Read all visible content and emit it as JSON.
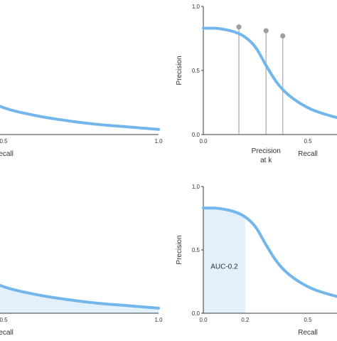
{
  "colors": {
    "curve": "#72b6ec",
    "fill": "#e1f0fb",
    "axis": "#3a3a3a",
    "marker_line": "#bdbdbd",
    "marker_dot": "#9e9e9e"
  },
  "chart_data": [
    {
      "type": "line",
      "panel": "top-left",
      "xlabel": "Recall",
      "ylabel": "",
      "xlim": [
        0.0,
        1.0
      ],
      "ylim": [
        0.0,
        1.0
      ],
      "x_ticks": [
        "0.5",
        "1.0"
      ],
      "y_ticks": [],
      "series": [
        {
          "x": [
            0.0,
            0.05,
            0.1,
            0.15,
            0.2,
            0.25,
            0.3,
            0.35,
            0.4,
            0.5,
            0.6,
            0.7,
            0.8,
            0.9,
            1.0
          ],
          "y": [
            0.83,
            0.83,
            0.82,
            0.8,
            0.76,
            0.68,
            0.54,
            0.41,
            0.32,
            0.21,
            0.15,
            0.11,
            0.08,
            0.06,
            0.04
          ]
        }
      ]
    },
    {
      "type": "line",
      "panel": "top-right",
      "xlabel": "Recall",
      "ylabel": "Precision",
      "xlim": [
        0.0,
        1.0
      ],
      "ylim": [
        0.0,
        1.0
      ],
      "x_ticks": [
        "0.0",
        "0.5"
      ],
      "y_ticks": [
        "0.0",
        "0.5",
        "1.0"
      ],
      "series": [
        {
          "x": [
            0.0,
            0.05,
            0.1,
            0.15,
            0.2,
            0.25,
            0.3,
            0.35,
            0.4,
            0.5,
            0.6,
            0.7,
            0.8,
            0.9,
            1.0
          ],
          "y": [
            0.83,
            0.83,
            0.82,
            0.8,
            0.76,
            0.68,
            0.54,
            0.41,
            0.32,
            0.21,
            0.15,
            0.11,
            0.08,
            0.06,
            0.04
          ]
        }
      ],
      "markers": [
        {
          "x": 0.17,
          "y": 0.84
        },
        {
          "x": 0.3,
          "y": 0.81
        },
        {
          "x": 0.38,
          "y": 0.77
        }
      ],
      "annotation": [
        "Precision",
        "at k"
      ]
    },
    {
      "type": "area",
      "panel": "bottom-left",
      "xlabel": "Recall",
      "ylabel": "",
      "xlim": [
        0.0,
        1.0
      ],
      "ylim": [
        0.0,
        1.0
      ],
      "x_ticks": [
        "0.5",
        "1.0"
      ],
      "y_ticks": [],
      "series": [
        {
          "x": [
            0.0,
            0.05,
            0.1,
            0.15,
            0.2,
            0.25,
            0.3,
            0.35,
            0.4,
            0.5,
            0.6,
            0.7,
            0.8,
            0.9,
            1.0
          ],
          "y": [
            0.83,
            0.83,
            0.82,
            0.8,
            0.76,
            0.68,
            0.54,
            0.41,
            0.32,
            0.21,
            0.15,
            0.11,
            0.08,
            0.06,
            0.04
          ]
        }
      ],
      "shaded_range": [
        0.0,
        1.0
      ]
    },
    {
      "type": "area",
      "panel": "bottom-right",
      "xlabel": "Recall",
      "ylabel": "Precision",
      "xlim": [
        0.0,
        1.0
      ],
      "ylim": [
        0.0,
        1.0
      ],
      "x_ticks": [
        "0.0",
        "0.2",
        "0.5"
      ],
      "y_ticks": [
        "0.0",
        "0.5",
        "1.0"
      ],
      "series": [
        {
          "x": [
            0.0,
            0.05,
            0.1,
            0.15,
            0.2,
            0.25,
            0.3,
            0.35,
            0.4,
            0.5,
            0.6,
            0.7,
            0.8,
            0.9,
            1.0
          ],
          "y": [
            0.83,
            0.83,
            0.82,
            0.8,
            0.76,
            0.68,
            0.54,
            0.41,
            0.32,
            0.21,
            0.15,
            0.11,
            0.08,
            0.06,
            0.04
          ]
        }
      ],
      "shaded_range": [
        0.0,
        0.2
      ],
      "annotation": [
        "AUC-0.2"
      ]
    }
  ]
}
